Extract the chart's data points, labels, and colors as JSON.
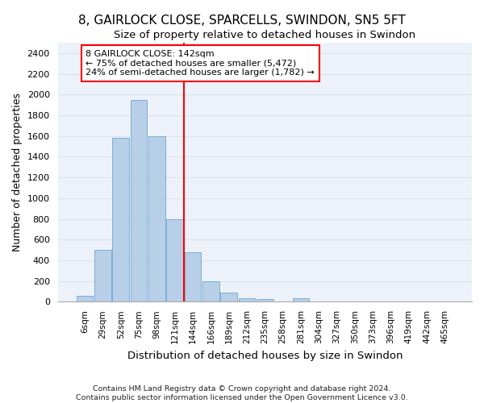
{
  "title1": "8, GAIRLOCK CLOSE, SPARCELLS, SWINDON, SN5 5FT",
  "title2": "Size of property relative to detached houses in Swindon",
  "xlabel": "Distribution of detached houses by size in Swindon",
  "ylabel": "Number of detached properties",
  "footnote1": "Contains HM Land Registry data © Crown copyright and database right 2024.",
  "footnote2": "Contains public sector information licensed under the Open Government Licence v3.0.",
  "bar_labels": [
    "6sqm",
    "29sqm",
    "52sqm",
    "75sqm",
    "98sqm",
    "121sqm",
    "144sqm",
    "166sqm",
    "189sqm",
    "212sqm",
    "235sqm",
    "258sqm",
    "281sqm",
    "304sqm",
    "327sqm",
    "350sqm",
    "373sqm",
    "396sqm",
    "419sqm",
    "442sqm",
    "465sqm"
  ],
  "bar_values": [
    55,
    500,
    1580,
    1950,
    1600,
    800,
    480,
    200,
    90,
    35,
    25,
    0,
    30,
    0,
    0,
    0,
    0,
    0,
    0,
    0,
    0
  ],
  "bar_color": "#b8cfe8",
  "bar_edge_color": "#7aaed6",
  "grid_color": "#d8e4f0",
  "background_color": "#edf2fa",
  "vline_x": 5.5,
  "vline_color": "red",
  "annotation_line1": "8 GAIRLOCK CLOSE: 142sqm",
  "annotation_line2": "← 75% of detached houses are smaller (5,472)",
  "annotation_line3": "24% of semi-detached houses are larger (1,782) →",
  "ylim": [
    0,
    2500
  ],
  "yticks": [
    0,
    200,
    400,
    600,
    800,
    1000,
    1200,
    1400,
    1600,
    1800,
    2000,
    2200,
    2400
  ]
}
